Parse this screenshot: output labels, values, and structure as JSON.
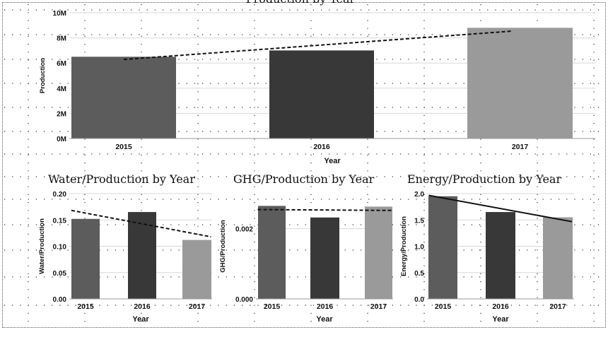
{
  "charts": {
    "main": {
      "title": "Production by Year",
      "xlabel": "Year",
      "ylabel": "Production"
    },
    "water": {
      "title": "Water/Production by Year",
      "xlabel": "Year",
      "ylabel": "Water/Production"
    },
    "ghg": {
      "title": "GHG/Production by Year",
      "xlabel": "Year",
      "ylabel": "GHG/Production"
    },
    "energy": {
      "title": "Energy/Production by Year",
      "xlabel": "Year",
      "ylabel": "Energy/Production"
    }
  },
  "colors": {
    "bar_2015": "#5c5c5c",
    "bar_2016": "#383838",
    "bar_2017": "#9a9a9a"
  },
  "chart_data": [
    {
      "id": "main",
      "type": "bar",
      "title": "Production by Year",
      "xlabel": "Year",
      "ylabel": "Production",
      "categories": [
        "2015",
        "2016",
        "2017"
      ],
      "values": [
        6500000,
        7000000,
        8800000
      ],
      "ylim": [
        0,
        10000000
      ],
      "yticks": [
        0,
        2000000,
        4000000,
        6000000,
        8000000,
        10000000
      ],
      "ytick_labels": [
        "0M",
        "2M",
        "4M",
        "6M",
        "8M",
        "10M"
      ],
      "trendline": "dashed",
      "grid": true,
      "legend": "none"
    },
    {
      "id": "water",
      "type": "bar",
      "title": "Water/Production by Year",
      "xlabel": "Year",
      "ylabel": "Water/Production",
      "categories": [
        "2015",
        "2016",
        "2017"
      ],
      "values": [
        0.152,
        0.165,
        0.112
      ],
      "ylim": [
        0,
        0.2
      ],
      "yticks": [
        0,
        0.05,
        0.1,
        0.15,
        0.2
      ],
      "ytick_labels": [
        "0.00",
        "0.05",
        "0.10",
        "0.15",
        "0.20"
      ],
      "trendline": "dashed",
      "grid": true,
      "legend": "none"
    },
    {
      "id": "ghg",
      "type": "bar",
      "title": "GHG/Production by Year",
      "xlabel": "Year",
      "ylabel": "GHG/Production",
      "categories": [
        "2015",
        "2016",
        "2017"
      ],
      "values": [
        0.00265,
        0.00232,
        0.00263
      ],
      "ylim": [
        0,
        0.003
      ],
      "yticks": [
        0,
        0.002
      ],
      "ytick_labels": [
        "0.000",
        "0.002"
      ],
      "trendline": "dashed",
      "grid": true,
      "legend": "none"
    },
    {
      "id": "energy",
      "type": "bar",
      "title": "Energy/Production by Year",
      "xlabel": "Year",
      "ylabel": "Energy/Production",
      "categories": [
        "2015",
        "2016",
        "2017"
      ],
      "values": [
        1.95,
        1.65,
        1.55
      ],
      "ylim": [
        0,
        2.0
      ],
      "yticks": [
        0,
        0.5,
        1.0,
        1.5,
        2.0
      ],
      "ytick_labels": [
        "0.0",
        "0.5",
        "1.0",
        "1.5",
        "2.0"
      ],
      "trendline": "solid",
      "grid": true,
      "legend": "none"
    }
  ]
}
